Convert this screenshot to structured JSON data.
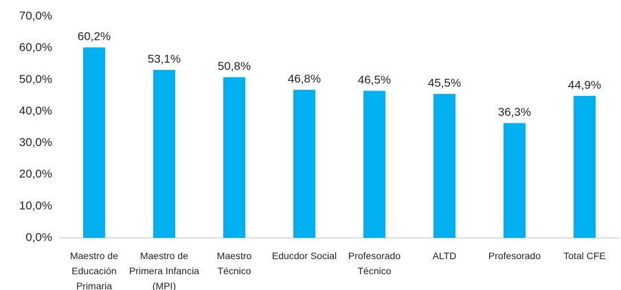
{
  "chart_data": {
    "type": "bar",
    "categories": [
      "Maestro de Educación Primaria",
      "Maestro de Primera Infancia (MPI)",
      "Maestro Técnico",
      "Educdor Social",
      "Profesorado Técnico",
      "ALTD",
      "Profesorado",
      "Total CFE"
    ],
    "values": [
      60.2,
      53.1,
      50.8,
      46.8,
      46.5,
      45.5,
      36.3,
      44.9
    ],
    "value_labels": [
      "60,2%",
      "53,1%",
      "50,8%",
      "46,8%",
      "46,5%",
      "45,5%",
      "36,3%",
      "44,9%"
    ],
    "color": "#00b0f0",
    "ylim": [
      0,
      70
    ],
    "yticks": [
      {
        "value": 0,
        "label": "0,0%"
      },
      {
        "value": 10,
        "label": "10,0%"
      },
      {
        "value": 20,
        "label": "20,0%"
      },
      {
        "value": 30,
        "label": "30,0%"
      },
      {
        "value": 40,
        "label": "40,0%"
      },
      {
        "value": 50,
        "label": "50,0%"
      },
      {
        "value": 60,
        "label": "60,0%"
      },
      {
        "value": 70,
        "label": "70,0%"
      }
    ],
    "grid": false
  }
}
